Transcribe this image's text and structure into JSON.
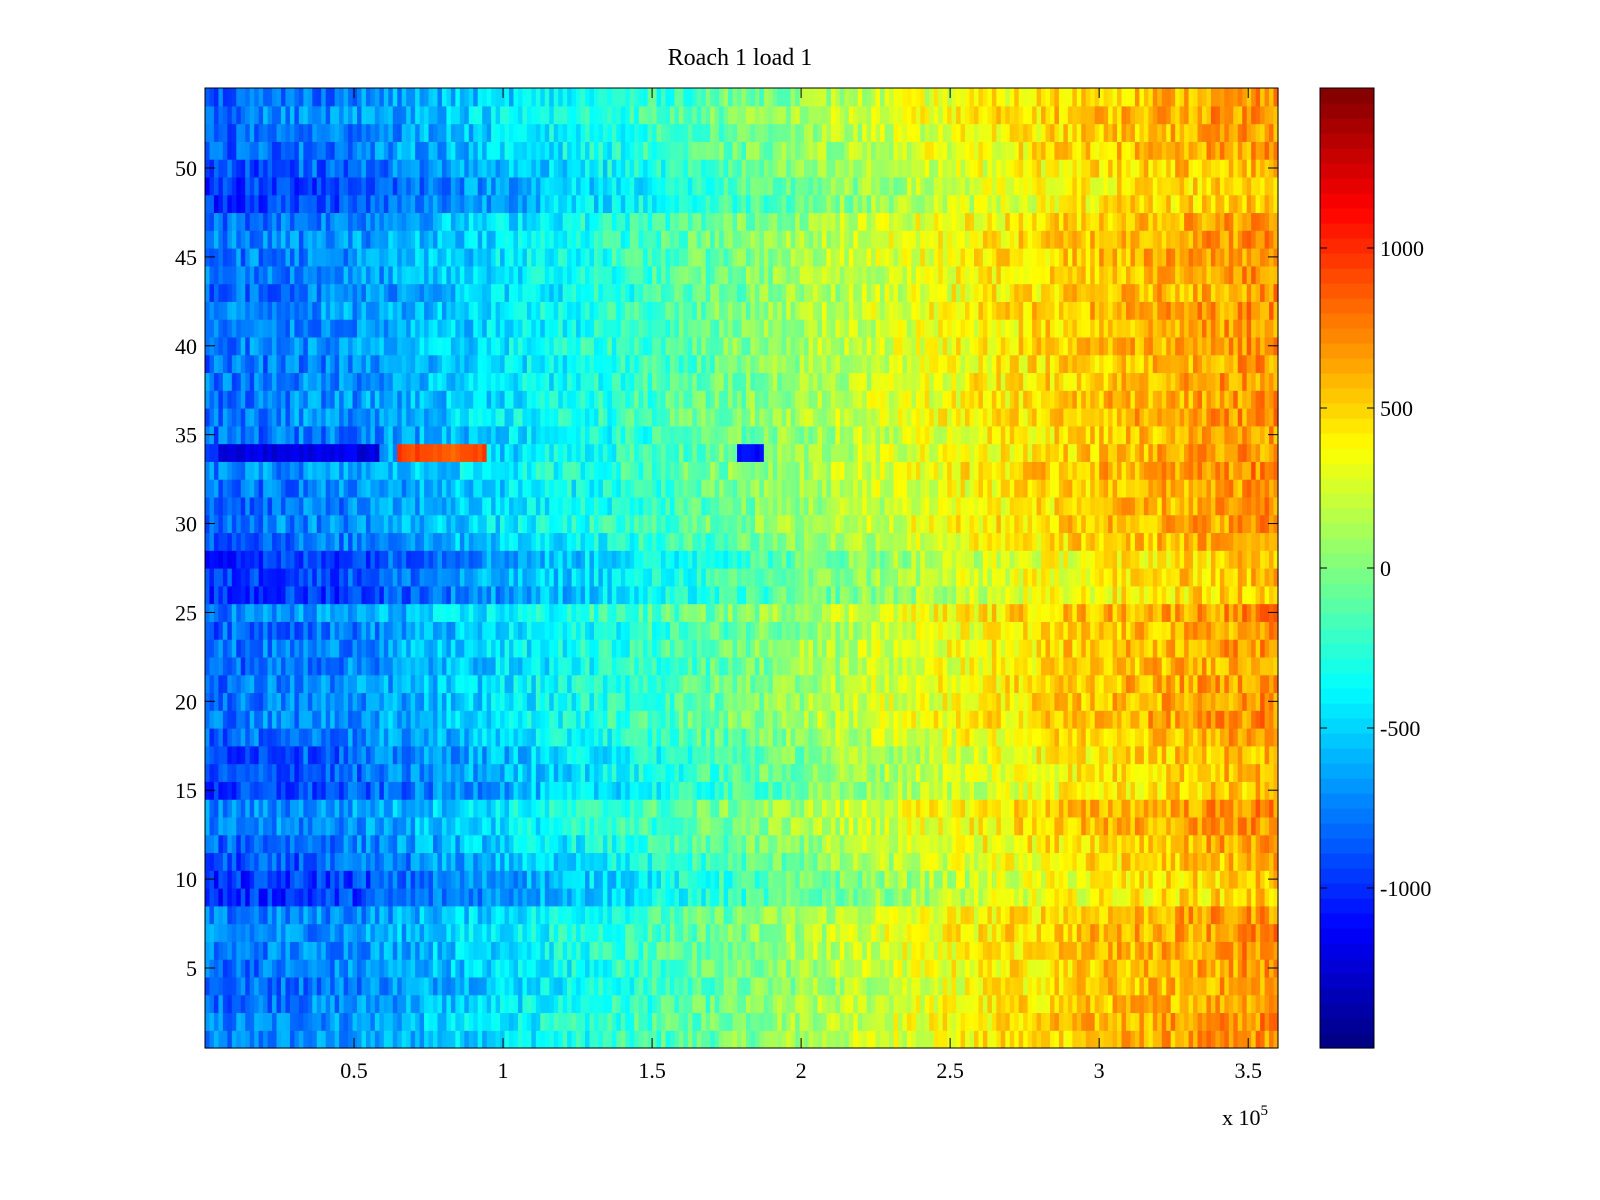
{
  "chart_data": {
    "type": "heatmap",
    "title": "Roach 1 load 1",
    "xlabel": "",
    "ylabel": "",
    "x_exponent_label": "x 10",
    "x_exponent_sup": "5",
    "xlim": [
      0,
      3.6
    ],
    "ylim": [
      0.5,
      54.5
    ],
    "x_scale": 100000,
    "x_ticks": [
      0.5,
      1,
      1.5,
      2,
      2.5,
      3,
      3.5
    ],
    "x_tick_labels": [
      "0.5",
      "1",
      "1.5",
      "2",
      "2.5",
      "3",
      "3.5"
    ],
    "y_ticks": [
      5,
      10,
      15,
      20,
      25,
      30,
      35,
      40,
      45,
      50
    ],
    "y_tick_labels": [
      "5",
      "10",
      "15",
      "20",
      "25",
      "30",
      "35",
      "40",
      "45",
      "50"
    ],
    "rows": 54,
    "colorbar": {
      "colormap": "jet",
      "clim": [
        -1500,
        1500
      ],
      "ticks": [
        -1000,
        -500,
        0,
        500,
        1000
      ],
      "tick_labels": [
        "-1000",
        "-500",
        "0",
        "500",
        "1000"
      ]
    },
    "trend": {
      "description_values_at_x": [
        0,
        0.5,
        1.0,
        1.5,
        2.0,
        2.5,
        3.0,
        3.6
      ],
      "mean_value": [
        -800,
        -700,
        -450,
        -200,
        100,
        350,
        550,
        700
      ]
    },
    "row_offsets": {
      "blue_band_rows": [
        9,
        10,
        11,
        15,
        16,
        17,
        26,
        27,
        28,
        48,
        49,
        50
      ],
      "anomaly_row": 34,
      "anomaly_segments": [
        {
          "x_start": 0.05,
          "x_end": 0.58,
          "value": -1200
        },
        {
          "x_start": 0.65,
          "x_end": 0.95,
          "value": 900
        },
        {
          "x_start": 1.78,
          "x_end": 1.88,
          "value": -1100
        }
      ]
    }
  }
}
